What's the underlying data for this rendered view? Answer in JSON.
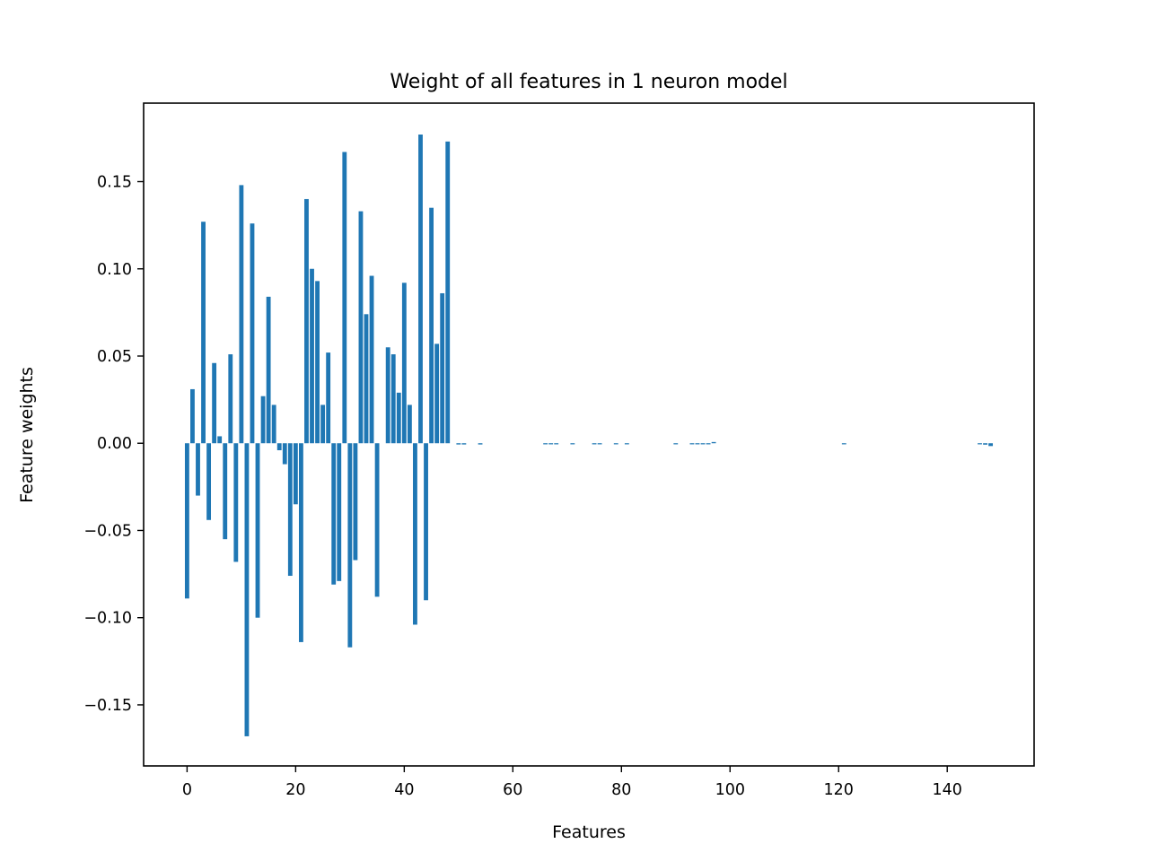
{
  "chart_data": {
    "type": "bar",
    "title": "Weight of all features in 1 neuron model",
    "xlabel": "Features",
    "ylabel": "Feature weights",
    "xlim": [
      -8,
      156
    ],
    "ylim": [
      -0.185,
      0.195
    ],
    "xticks": [
      {
        "value": 0,
        "label": "0"
      },
      {
        "value": 20,
        "label": "20"
      },
      {
        "value": 40,
        "label": "40"
      },
      {
        "value": 60,
        "label": "60"
      },
      {
        "value": 80,
        "label": "80"
      },
      {
        "value": 100,
        "label": "100"
      },
      {
        "value": 120,
        "label": "120"
      },
      {
        "value": 140,
        "label": "140"
      }
    ],
    "yticks": [
      {
        "value": -0.15,
        "label": "−0.15"
      },
      {
        "value": -0.1,
        "label": "−0.10"
      },
      {
        "value": -0.05,
        "label": "−0.05"
      },
      {
        "value": 0.0,
        "label": "0.00"
      },
      {
        "value": 0.05,
        "label": "0.05"
      },
      {
        "value": 0.1,
        "label": "0.10"
      },
      {
        "value": 0.15,
        "label": "0.15"
      }
    ],
    "grid": false,
    "bar_color": "#1f77b4",
    "x": [
      0,
      1,
      2,
      3,
      4,
      5,
      6,
      7,
      8,
      9,
      10,
      11,
      12,
      13,
      14,
      15,
      16,
      17,
      18,
      19,
      20,
      21,
      22,
      23,
      24,
      25,
      26,
      27,
      28,
      29,
      30,
      31,
      32,
      33,
      34,
      35,
      36,
      37,
      38,
      39,
      40,
      41,
      42,
      43,
      44,
      45,
      46,
      47,
      48,
      49,
      50,
      51,
      52,
      53,
      54,
      55,
      56,
      57,
      58,
      59,
      60,
      61,
      62,
      63,
      64,
      65,
      66,
      67,
      68,
      69,
      70,
      71,
      72,
      73,
      74,
      75,
      76,
      77,
      78,
      79,
      80,
      81,
      82,
      83,
      84,
      85,
      86,
      87,
      88,
      89,
      90,
      91,
      92,
      93,
      94,
      95,
      96,
      97,
      98,
      99,
      100,
      101,
      102,
      103,
      104,
      105,
      106,
      107,
      108,
      109,
      110,
      111,
      112,
      113,
      114,
      115,
      116,
      117,
      118,
      119,
      120,
      121,
      122,
      123,
      124,
      125,
      126,
      127,
      128,
      129,
      130,
      131,
      132,
      133,
      134,
      135,
      136,
      137,
      138,
      139,
      140,
      141,
      142,
      143,
      144,
      145,
      146,
      147,
      148
    ],
    "values": [
      -0.089,
      0.031,
      -0.03,
      0.127,
      -0.044,
      0.046,
      0.004,
      -0.055,
      0.051,
      -0.068,
      0.148,
      -0.168,
      0.126,
      -0.1,
      0.027,
      0.084,
      0.022,
      -0.004,
      -0.012,
      -0.076,
      -0.035,
      -0.114,
      0.14,
      0.1,
      0.093,
      0.022,
      0.052,
      -0.081,
      -0.079,
      0.167,
      -0.117,
      -0.067,
      0.133,
      0.074,
      0.096,
      -0.088,
      0.0,
      0.055,
      0.051,
      0.029,
      0.092,
      0.022,
      -0.104,
      0.177,
      -0.09,
      0.135,
      0.057,
      0.086,
      0.173,
      0,
      -0.0007,
      -0.0007,
      0,
      0,
      -0.0007,
      0,
      0,
      0,
      0,
      0,
      0,
      0,
      0,
      0,
      0,
      0,
      -0.0006,
      -0.0006,
      -0.0006,
      0,
      0,
      -0.0006,
      0,
      0,
      0,
      -0.0006,
      -0.0006,
      0,
      0,
      -0.0006,
      0,
      -0.0006,
      0,
      0,
      0,
      0,
      0,
      0,
      0,
      0,
      -0.0006,
      0,
      0,
      -0.0006,
      -0.0006,
      -0.0006,
      -0.0006,
      0.0007,
      0,
      0,
      0,
      0,
      0,
      0,
      0,
      0,
      0,
      0,
      0,
      0,
      0,
      0,
      0,
      0,
      0,
      0,
      0,
      0,
      0,
      0,
      0,
      -0.0006,
      0,
      0,
      0,
      0,
      0,
      0,
      0,
      0,
      0,
      0,
      0,
      0,
      0,
      0,
      0,
      0,
      0,
      0,
      0,
      0,
      0,
      0,
      0,
      0,
      -0.0006,
      -0.0008,
      -0.0016
    ]
  }
}
